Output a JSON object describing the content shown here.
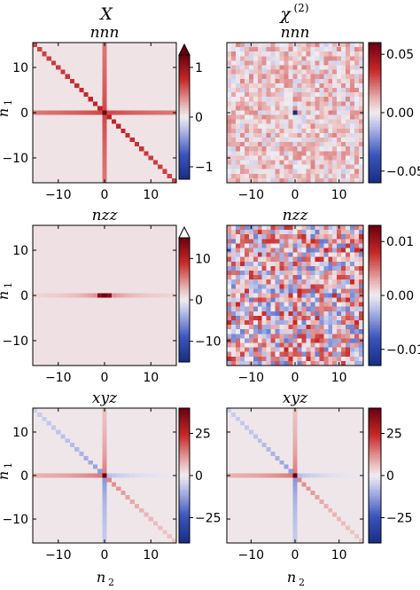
{
  "figure": {
    "column_titles": [
      "X",
      "χ(2)"
    ],
    "xlabel": "n2",
    "ylabel": "n1"
  },
  "chart_data": [
    {
      "type": "heatmap",
      "title": "nnn",
      "column": "X",
      "x": {
        "min": -15,
        "max": 15,
        "ticks": [
          -10,
          0,
          10
        ]
      },
      "y": {
        "min": -15,
        "max": 15,
        "ticks": [
          -10,
          0,
          10
        ]
      },
      "colorbar": {
        "min": -1.25,
        "max": 1.25,
        "ticks": [
          -1,
          0,
          1
        ],
        "tick_labels": [
          "−1",
          "0",
          "1"
        ],
        "extend": "max"
      },
      "pattern": "cross-plus-diagonal",
      "center_value": 1.2,
      "cross_value": 0.65,
      "diag_value": 0.85,
      "background": 0.04
    },
    {
      "type": "heatmap",
      "title": "nnn",
      "column": "χ(2)",
      "x": {
        "min": -15,
        "max": 15,
        "ticks": [
          -10,
          0,
          10
        ]
      },
      "y": {
        "min": -15,
        "max": 15,
        "ticks": [
          -10,
          0,
          10
        ]
      },
      "colorbar": {
        "min": -0.06,
        "max": 0.06,
        "ticks": [
          -0.05,
          0.0,
          0.05
        ],
        "tick_labels": [
          "−0.05",
          "0.00",
          "0.05"
        ],
        "extend": "none"
      },
      "pattern": "noise",
      "noise_mean": 0.006,
      "noise_amplitude": 0.014,
      "center_value": -0.06
    },
    {
      "type": "heatmap",
      "title": "nzz",
      "column": "X",
      "x": {
        "min": -15,
        "max": 15,
        "ticks": [
          -10,
          0,
          10
        ]
      },
      "y": {
        "min": -15,
        "max": 15,
        "ticks": [
          -10,
          0,
          10
        ]
      },
      "colorbar": {
        "min": -15,
        "max": 15,
        "ticks": [
          -10,
          0,
          10
        ],
        "tick_labels": [
          "−10",
          "0",
          "10"
        ],
        "extend": "max"
      },
      "pattern": "horizontal-line",
      "center_value": 16,
      "near_value": 13,
      "line_value": 4,
      "background": 0.6
    },
    {
      "type": "heatmap",
      "title": "nzz",
      "column": "χ(2)",
      "x": {
        "min": -15,
        "max": 15,
        "ticks": [
          -10,
          0,
          10
        ]
      },
      "y": {
        "min": -15,
        "max": 15,
        "ticks": [
          -10,
          0,
          10
        ]
      },
      "colorbar": {
        "min": -0.013,
        "max": 0.013,
        "ticks": [
          -0.01,
          0.0,
          0.01
        ],
        "tick_labels": [
          "−0.01",
          "0.00",
          "0.01"
        ],
        "extend": "none"
      },
      "pattern": "noise",
      "noise_mean": 0.001,
      "noise_amplitude": 0.007,
      "center_value": 0.0
    },
    {
      "type": "heatmap",
      "title": "xyz",
      "column": "X",
      "x": {
        "min": -15,
        "max": 15,
        "ticks": [
          -10,
          0,
          10
        ]
      },
      "y": {
        "min": -15,
        "max": 15,
        "ticks": [
          -10,
          0,
          10
        ]
      },
      "colorbar": {
        "min": -40,
        "max": 40,
        "ticks": [
          -25,
          0,
          25
        ],
        "tick_labels": [
          "−25",
          "0",
          "25"
        ],
        "extend": "none"
      },
      "pattern": "antisymmetric-cross",
      "center_value": 40,
      "cross_value": 15,
      "diag_value": -14,
      "background": 0.8
    },
    {
      "type": "heatmap",
      "title": "xyz",
      "column": "χ(2)",
      "x": {
        "min": -15,
        "max": 15,
        "ticks": [
          -10,
          0,
          10
        ]
      },
      "y": {
        "min": -15,
        "max": 15,
        "ticks": [
          -10,
          0,
          10
        ]
      },
      "colorbar": {
        "min": -40,
        "max": 40,
        "ticks": [
          -25,
          0,
          25
        ],
        "tick_labels": [
          "−25",
          "0",
          "25"
        ],
        "extend": "none"
      },
      "pattern": "antisymmetric-cross",
      "center_value": 40,
      "cross_value": 15,
      "diag_value": -14,
      "background": 0.8
    }
  ]
}
